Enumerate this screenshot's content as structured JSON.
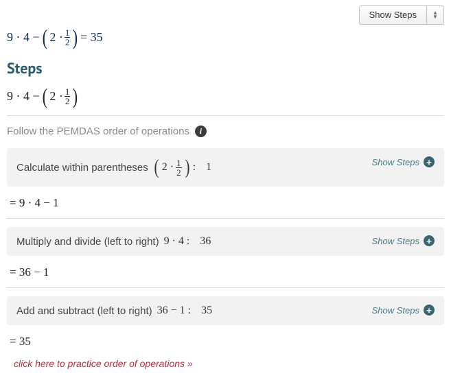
{
  "dropdown": {
    "label": "Show Steps"
  },
  "main_equation": {
    "lhs_prefix": "9 · 4 − ",
    "inner_prefix": "2 · ",
    "frac_num": "1",
    "frac_den": "2",
    "rhs": " = 35"
  },
  "steps_heading": "Steps",
  "expr_line": {
    "prefix": "9 · 4 − ",
    "inner_prefix": "2 · ",
    "frac_num": "1",
    "frac_den": "2"
  },
  "pemdas": {
    "text": "Follow the PEMDAS order of operations",
    "info_glyph": "i"
  },
  "step1": {
    "label": "Calculate within parentheses",
    "inner_prefix": "2 · ",
    "frac_num": "1",
    "frac_den": "2",
    "colon": " :",
    "result": "1",
    "show": "Show Steps",
    "after": "= 9 · 4 − 1"
  },
  "step2": {
    "label": "Multiply and divide (left to right)",
    "expr": "9 · 4 :",
    "result": "36",
    "show": "Show Steps",
    "after": "= 36 − 1"
  },
  "step3": {
    "label": "Add and subtract (left to right)",
    "expr": "36 − 1 :",
    "result": "35",
    "show": "Show Steps",
    "after": "= 35"
  },
  "practice": {
    "text": "click here to practice order of operations »"
  },
  "colors": {
    "heading": "#2d5c6e",
    "eq_blue": "#0b2a4a",
    "box_bg": "#f2f2f2",
    "link_teal": "#4a7a8a",
    "practice": "#b03040"
  }
}
